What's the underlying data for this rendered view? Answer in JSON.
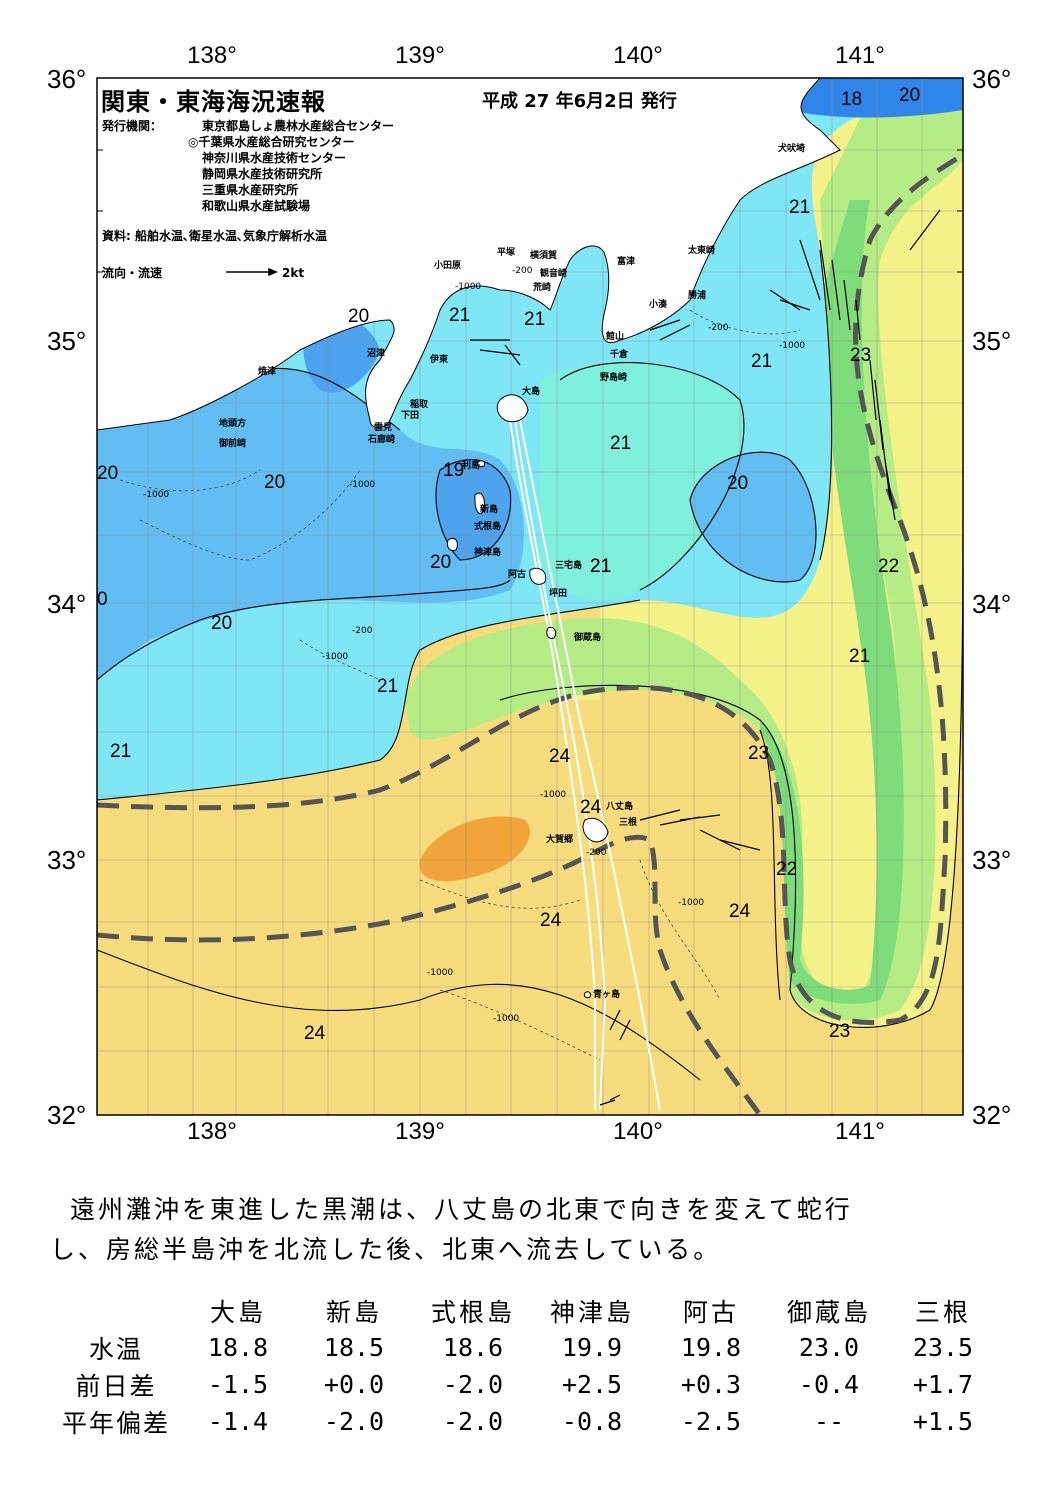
{
  "map": {
    "title": "関東・東海海況速報",
    "issue_date": "平成 27 年6月2日 発行",
    "issuers_label": "発行機関：",
    "issuers": [
      "東京都島しょ農林水産総合センター",
      "◎千葉県水産総合研究センター",
      "神奈川県水産技術センター",
      "静岡県水産技術研究所",
      "三重県水産研究所",
      "和歌山県水産試験場"
    ],
    "sources": "資料: 船舶水温､衛星水温､気象庁解析水温",
    "flow_legend": "流向・流速",
    "flow_unit": "2kt",
    "lon_labels": [
      "138°",
      "139°",
      "140°",
      "141°"
    ],
    "lat_labels": [
      "36°",
      "35°",
      "34°",
      "33°",
      "32°"
    ],
    "colors": {
      "t18": "#2f86e8",
      "t19": "#4da3ee",
      "t20": "#62bdf2",
      "t21": "#7fe6f6",
      "t21b": "#7ff0dc",
      "t22": "#7fdc7a",
      "t22b": "#b6ec86",
      "t23": "#f6f28a",
      "t24": "#f7dc7e",
      "t25": "#f2a43a",
      "land": "#ffffff",
      "kuroshio": "#555555"
    },
    "place_names": {
      "inubozaki": "犬吠埼",
      "taitozaki": "太東崎",
      "katsuura": "勝浦",
      "kominato": "小湊",
      "futtsu": "富津",
      "kannonzaki": "観音崎",
      "yokosuka": "横須賀",
      "hiratsuka": "平塚",
      "odawara": "小田原",
      "arasaki": "荒崎",
      "tateyama": "館山",
      "chikura": "千倉",
      "nojimazaki": "野島崎",
      "numazu": "沼津",
      "yaizu": "焼津",
      "ito": "伊東",
      "inatori": "稲取",
      "shimoda": "下田",
      "kumomi": "雲見",
      "irozaki": "石廊崎",
      "jitogata": "地頭方",
      "omaezaki": "御前崎",
      "oshima": "大島",
      "toshima": "利島",
      "niijima": "新島",
      "shikinejima": "式根島",
      "kozushima": "神津島",
      "ako": "阿古",
      "miyakejima": "三宅島",
      "tsubota": "坪田",
      "mikurajima": "御蔵島",
      "hachijojima": "八丈島",
      "mitsune": "三根",
      "okago": "大賀郷",
      "aogashima": "青ヶ島"
    },
    "isotherm_labels": [
      {
        "t": "18"
      },
      {
        "t": "20"
      },
      {
        "t": "21"
      },
      {
        "t": "20"
      },
      {
        "t": "21"
      },
      {
        "t": "21"
      },
      {
        "t": "21"
      },
      {
        "t": "23"
      },
      {
        "t": "21"
      },
      {
        "t": "21"
      },
      {
        "t": "20"
      },
      {
        "t": "20"
      },
      {
        "t": "20"
      },
      {
        "t": "19"
      },
      {
        "t": "20"
      },
      {
        "t": "21"
      },
      {
        "t": "22"
      },
      {
        "t": "0"
      },
      {
        "t": "20"
      },
      {
        "t": "21"
      },
      {
        "t": "21"
      },
      {
        "t": "21"
      },
      {
        "t": "23"
      },
      {
        "t": "24"
      },
      {
        "t": "24"
      },
      {
        "t": "22"
      },
      {
        "t": "24"
      },
      {
        "t": "24"
      },
      {
        "t": "24"
      },
      {
        "t": "23"
      }
    ],
    "depth_labels": [
      "-200",
      "-1000"
    ]
  },
  "description": [
    "遠州灘沖を東進した黒潮は、八丈島の北東で向きを変えて蛇行",
    "し、房総半島沖を北流した後、北東へ流去している。"
  ],
  "table": {
    "columns": [
      "大島",
      "新島",
      "式根島",
      "神津島",
      "阿古",
      "御蔵島",
      "三根"
    ],
    "rows": [
      {
        "label": "水温",
        "values": [
          "18.8",
          "18.5",
          "18.6",
          "19.9",
          "19.8",
          "23.0",
          "23.5"
        ]
      },
      {
        "label": "前日差",
        "values": [
          "-1.5",
          "+0.0",
          "-2.0",
          "+2.5",
          "+0.3",
          "-0.4",
          "+1.7"
        ]
      },
      {
        "label": "平年偏差",
        "values": [
          "-1.4",
          "-2.0",
          "-2.0",
          "-0.8",
          "-2.5",
          "--",
          "+1.5"
        ]
      }
    ]
  }
}
